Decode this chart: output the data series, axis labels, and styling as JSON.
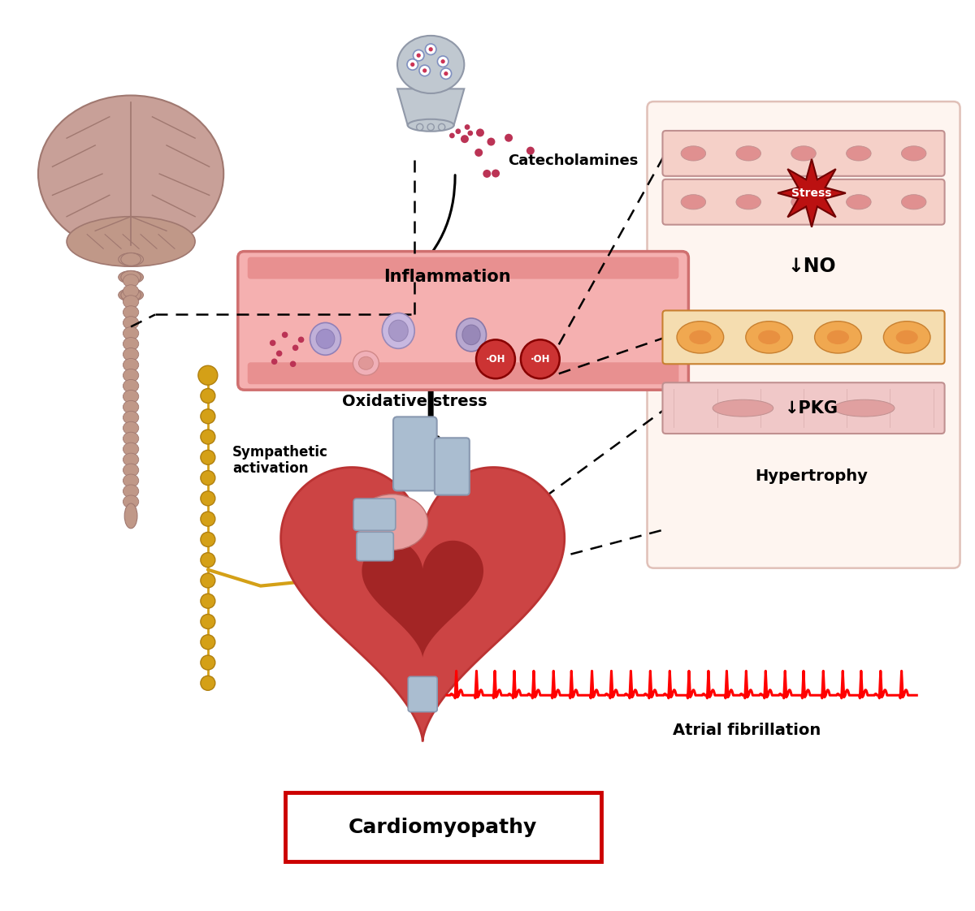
{
  "labels": {
    "catecholamines": "Catecholamines",
    "inflammation": "Inflammation",
    "oxidative_stress": "Oxidative stress",
    "sympathetic": "Sympathetic\nactivation",
    "stress": "Stress",
    "no": "↓NO",
    "pkg": "↓PKG",
    "hypertrophy": "Hypertrophy",
    "atrial_fib": "Atrial fibrillation",
    "oh1": "·OH",
    "oh2": "·OH",
    "cardiomyopathy": "Cardiomyopathy"
  },
  "colors": {
    "background": "#ffffff",
    "brain_fill": "#c8a098",
    "brain_cortex": "#c09088",
    "brain_dark": "#a07870",
    "brainstem_fill": "#c09888",
    "vessel_fill": "#f5b0b0",
    "vessel_wall": "#e89090",
    "vessel_border": "#d07070",
    "cell_purple1": "#b8aad0",
    "cell_purple2": "#c0b8d8",
    "cell_purple3": "#b0a8cc",
    "cell_pink": "#f0b8b8",
    "oh_red": "#cc3333",
    "oh_border": "#880000",
    "heart_outer": "#cc4444",
    "heart_inner": "#aa2222",
    "heart_dark": "#881111",
    "heart_blue": "#aabdd0",
    "nerve_gold": "#d4a017",
    "stress_star": "#bb1111",
    "stress_text": "#ffffff",
    "epi_strip": "#f5d0c8",
    "epi_border": "#c09090",
    "epi_nucleus": "#e09090",
    "orange_cell_bg": "#f5ddb0",
    "orange_cell": "#f0a850",
    "orange_border": "#c88030",
    "muscle_fill": "#f0c8c8",
    "muscle_border": "#c09090",
    "muscle_nucleus": "#e0a0a0",
    "arrow_black": "#000000",
    "dashed": "#333333",
    "ecg_red": "#ff0000",
    "cardio_border": "#cc0000",
    "neuron_fill": "#c0c8d0",
    "neuron_border": "#9098a8",
    "vesicle_fill": "#ffffff",
    "vesicle_border": "#8090c0",
    "dot_pink": "#bb3355"
  },
  "figsize": [
    12.0,
    11.22
  ],
  "dpi": 100
}
